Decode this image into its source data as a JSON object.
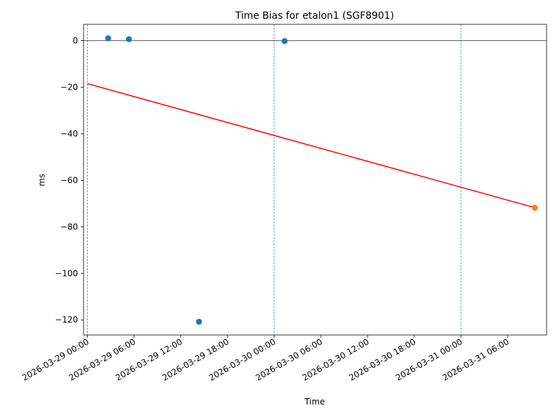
{
  "chart_data": {
    "type": "scatter",
    "title": "Time Bias for etalon1 (SGF8901)",
    "xlabel": "Time",
    "ylabel": "ms",
    "xlim": [
      "2026-03-28 23:30",
      "2026-03-31 11:00"
    ],
    "ylim": [
      -126.5,
      7
    ],
    "x_ticks": [
      "2026-03-29 00:00",
      "2026-03-29 06:00",
      "2026-03-29 12:00",
      "2026-03-29 18:00",
      "2026-03-30 00:00",
      "2026-03-30 06:00",
      "2026-03-30 12:00",
      "2026-03-30 18:00",
      "2026-03-31 00:00",
      "2026-03-31 06:00"
    ],
    "y_ticks": [
      0,
      -20,
      -40,
      -60,
      -80,
      -100,
      -120
    ],
    "grid": false,
    "reference_lines": {
      "horizontal": 0,
      "vertical": [
        "2026-03-29 00:00",
        "2026-03-30 00:00",
        "2026-03-31 00:00"
      ]
    },
    "series": [
      {
        "color": "#1f77b4",
        "points": [
          {
            "x": "2026-03-29 02:40",
            "y": 1.0
          },
          {
            "x": "2026-03-29 05:20",
            "y": 0.6
          },
          {
            "x": "2026-03-29 14:20",
            "y": -120.8
          },
          {
            "x": "2026-03-30 01:20",
            "y": -0.2
          }
        ]
      },
      {
        "color": "#ff7f0e",
        "points": [
          {
            "x": "2026-03-31 09:30",
            "y": -71.8
          }
        ]
      }
    ],
    "fit_line": {
      "color": "#ff0000",
      "points": [
        {
          "x": "2026-03-29 00:00",
          "y": -18.5
        },
        {
          "x": "2026-03-31 09:30",
          "y": -71.8
        }
      ]
    }
  }
}
